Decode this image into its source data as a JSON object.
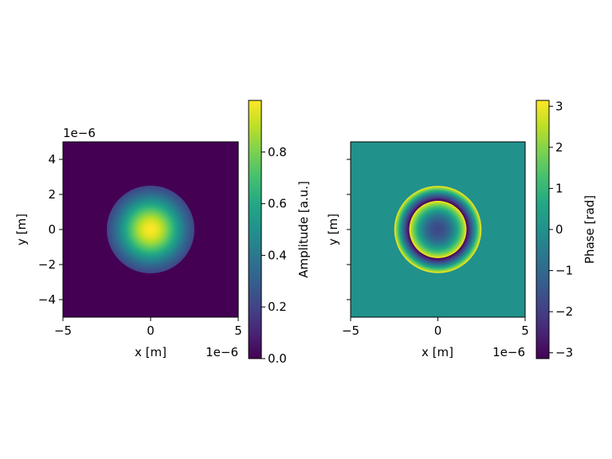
{
  "chart_data": [
    {
      "type": "heatmap",
      "field": "amplitude",
      "xlabel": "x [m]",
      "ylabel": "y [m]",
      "x_offset_text": "1e−6",
      "y_offset_text": "1e−6",
      "xlim": [
        -5,
        5
      ],
      "ylim": [
        -5,
        5
      ],
      "xticks": [
        -5,
        0,
        5
      ],
      "xtick_labels": [
        "−5",
        "0",
        "5"
      ],
      "yticks": [
        -4,
        -2,
        0,
        2,
        4
      ],
      "ytick_labels": [
        "−4",
        "−2",
        "0",
        "2",
        "4"
      ],
      "aperture_radius": 2.5,
      "gaussian_waist": 2.0,
      "peak_value": 1.0,
      "colormap": "viridis",
      "colorbar": {
        "label": "Amplitude [a.u.]",
        "range": [
          0,
          1
        ],
        "ticks": [
          0,
          0.2,
          0.4,
          0.6,
          0.8
        ],
        "tick_labels": [
          "0.0",
          "0.2",
          "0.4",
          "0.6",
          "0.8"
        ]
      }
    },
    {
      "type": "heatmap",
      "field": "phase",
      "xlabel": "x [m]",
      "ylabel": "y [m]",
      "x_offset_text": "1e−6",
      "xlim": [
        -5,
        5
      ],
      "ylim": [
        -5,
        5
      ],
      "xticks": [
        -5,
        0,
        5
      ],
      "xtick_labels": [
        "−5",
        "0",
        "5"
      ],
      "yticks": [
        -4,
        -2,
        0,
        2,
        4
      ],
      "show_ytick_labels": false,
      "background_phase": 0,
      "aperture_radius": 2.5,
      "phase_at_center": -1.75,
      "radial_phase_rate": 1.78,
      "colormap": "viridis",
      "colorbar": {
        "label": "Phase [rad]",
        "range": [
          -3.14159,
          3.14159
        ],
        "ticks": [
          -3,
          -2,
          -1,
          0,
          1,
          2,
          3
        ],
        "tick_labels": [
          "−3",
          "−2",
          "−1",
          "0",
          "1",
          "2",
          "3"
        ]
      }
    }
  ]
}
